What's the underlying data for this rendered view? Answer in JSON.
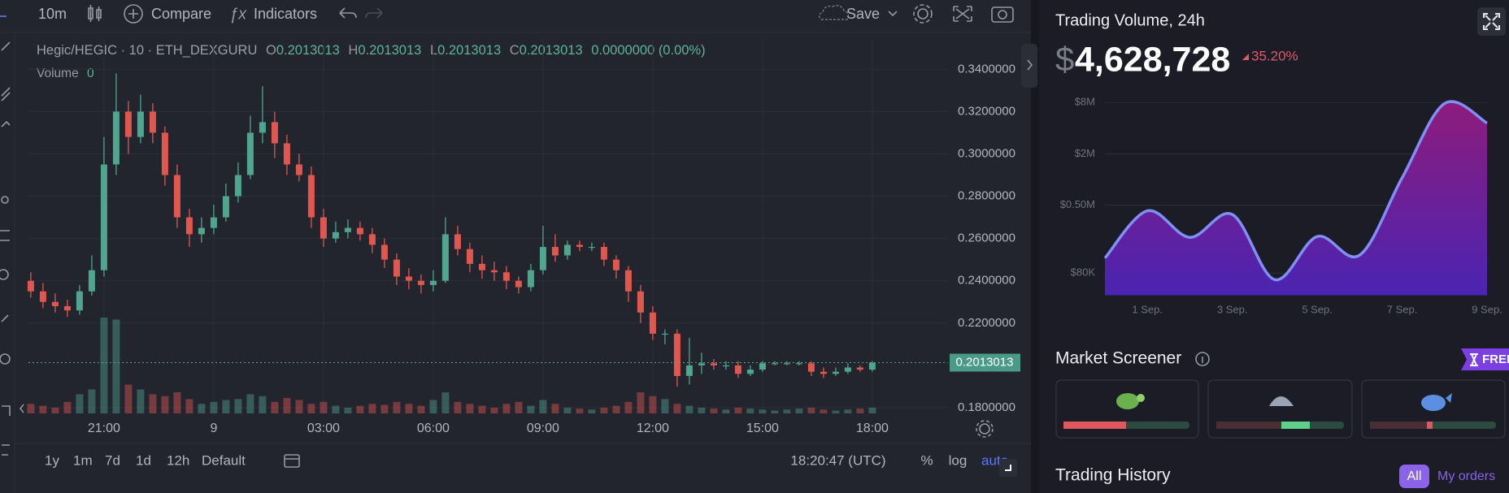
{
  "toolbar": {
    "interval": "10m",
    "compare": "Compare",
    "indicators": "Indicators",
    "save": "Save"
  },
  "chart_data": [
    {
      "type": "candlestick",
      "legend": {
        "symbol": "Hegic/HEGIC · 10 · ETH_DEXGURU",
        "o_label": "O",
        "o": "0.2013013",
        "h_label": "H",
        "h": "0.2013013",
        "l_label": "L",
        "l": "0.2013013",
        "c_label": "C",
        "c": "0.2013013",
        "change": "0.0000000 (0.00%)"
      },
      "volume_label": "Volume",
      "volume_value": "0",
      "ohlc": [
        [
          0.24,
          0.244,
          0.232,
          0.235
        ],
        [
          0.235,
          0.239,
          0.227,
          0.23
        ],
        [
          0.23,
          0.234,
          0.225,
          0.228
        ],
        [
          0.228,
          0.231,
          0.223,
          0.226
        ],
        [
          0.226,
          0.238,
          0.224,
          0.235
        ],
        [
          0.235,
          0.252,
          0.233,
          0.245
        ],
        [
          0.245,
          0.308,
          0.242,
          0.295
        ],
        [
          0.295,
          0.338,
          0.29,
          0.32
        ],
        [
          0.32,
          0.325,
          0.3,
          0.308
        ],
        [
          0.308,
          0.328,
          0.305,
          0.32
        ],
        [
          0.32,
          0.324,
          0.305,
          0.31
        ],
        [
          0.31,
          0.313,
          0.285,
          0.29
        ],
        [
          0.29,
          0.295,
          0.265,
          0.27
        ],
        [
          0.27,
          0.274,
          0.256,
          0.262
        ],
        [
          0.262,
          0.27,
          0.258,
          0.265
        ],
        [
          0.265,
          0.276,
          0.262,
          0.27
        ],
        [
          0.27,
          0.286,
          0.268,
          0.28
        ],
        [
          0.28,
          0.296,
          0.277,
          0.29
        ],
        [
          0.29,
          0.318,
          0.288,
          0.31
        ],
        [
          0.31,
          0.332,
          0.305,
          0.315
        ],
        [
          0.315,
          0.32,
          0.298,
          0.305
        ],
        [
          0.305,
          0.309,
          0.29,
          0.295
        ],
        [
          0.295,
          0.3,
          0.287,
          0.29
        ],
        [
          0.29,
          0.294,
          0.265,
          0.27
        ],
        [
          0.27,
          0.274,
          0.256,
          0.26
        ],
        [
          0.26,
          0.268,
          0.258,
          0.263
        ],
        [
          0.263,
          0.269,
          0.26,
          0.265
        ],
        [
          0.265,
          0.268,
          0.259,
          0.262
        ],
        [
          0.262,
          0.265,
          0.253,
          0.257
        ],
        [
          0.257,
          0.26,
          0.246,
          0.25
        ],
        [
          0.25,
          0.253,
          0.238,
          0.242
        ],
        [
          0.242,
          0.246,
          0.236,
          0.24
        ],
        [
          0.24,
          0.243,
          0.234,
          0.238
        ],
        [
          0.238,
          0.245,
          0.235,
          0.24
        ],
        [
          0.24,
          0.27,
          0.239,
          0.262
        ],
        [
          0.262,
          0.266,
          0.252,
          0.255
        ],
        [
          0.255,
          0.258,
          0.244,
          0.248
        ],
        [
          0.248,
          0.252,
          0.241,
          0.245
        ],
        [
          0.245,
          0.249,
          0.24,
          0.244
        ],
        [
          0.244,
          0.247,
          0.236,
          0.24
        ],
        [
          0.24,
          0.242,
          0.234,
          0.237
        ],
        [
          0.237,
          0.248,
          0.235,
          0.245
        ],
        [
          0.245,
          0.266,
          0.243,
          0.256
        ],
        [
          0.256,
          0.262,
          0.249,
          0.252
        ],
        [
          0.252,
          0.259,
          0.25,
          0.257
        ],
        [
          0.257,
          0.259,
          0.254,
          0.256
        ],
        [
          0.256,
          0.258,
          0.254,
          0.256
        ],
        [
          0.256,
          0.258,
          0.247,
          0.25
        ],
        [
          0.25,
          0.252,
          0.241,
          0.245
        ],
        [
          0.245,
          0.247,
          0.23,
          0.235
        ],
        [
          0.235,
          0.238,
          0.22,
          0.225
        ],
        [
          0.225,
          0.228,
          0.212,
          0.215
        ],
        [
          0.215,
          0.217,
          0.21,
          0.215
        ],
        [
          0.215,
          0.217,
          0.19,
          0.195
        ],
        [
          0.195,
          0.213,
          0.191,
          0.2
        ],
        [
          0.2,
          0.206,
          0.196,
          0.201
        ],
        [
          0.201,
          0.203,
          0.198,
          0.2
        ],
        [
          0.2,
          0.202,
          0.198,
          0.2
        ],
        [
          0.2,
          0.202,
          0.194,
          0.196
        ],
        [
          0.196,
          0.2,
          0.195,
          0.198
        ],
        [
          0.198,
          0.202,
          0.197,
          0.201
        ],
        [
          0.201,
          0.202,
          0.2,
          0.201
        ],
        [
          0.201,
          0.202,
          0.2,
          0.201
        ],
        [
          0.201,
          0.202,
          0.2,
          0.201
        ],
        [
          0.201,
          0.202,
          0.195,
          0.197
        ],
        [
          0.197,
          0.199,
          0.194,
          0.196
        ],
        [
          0.196,
          0.199,
          0.195,
          0.197
        ],
        [
          0.197,
          0.201,
          0.196,
          0.199
        ],
        [
          0.199,
          0.2,
          0.197,
          0.198
        ],
        [
          0.198,
          0.202,
          0.197,
          0.2013
        ]
      ],
      "volume": [
        10,
        8,
        6,
        12,
        20,
        25,
        100,
        98,
        30,
        25,
        20,
        18,
        22,
        15,
        10,
        12,
        14,
        15,
        20,
        18,
        12,
        16,
        14,
        10,
        12,
        8,
        6,
        8,
        10,
        9,
        12,
        10,
        8,
        14,
        22,
        12,
        10,
        8,
        6,
        10,
        12,
        8,
        14,
        10,
        6,
        5,
        4,
        6,
        8,
        12,
        22,
        18,
        15,
        10,
        8,
        6,
        5,
        4,
        6,
        5,
        4,
        3,
        4,
        5,
        6,
        4,
        3,
        4,
        5,
        6
      ],
      "volume_ylim": [
        0,
        100
      ],
      "ylim": [
        0.1773,
        0.3547
      ],
      "yticks": [
        {
          "value": 0.18,
          "label": "0.1800000"
        },
        {
          "value": 0.22,
          "label": "0.2200000"
        },
        {
          "value": 0.24,
          "label": "0.2400000"
        },
        {
          "value": 0.26,
          "label": "0.2600000"
        },
        {
          "value": 0.28,
          "label": "0.2800000"
        },
        {
          "value": 0.3,
          "label": "0.3000000"
        },
        {
          "value": 0.32,
          "label": "0.3200000"
        },
        {
          "value": 0.34,
          "label": "0.3400000"
        }
      ],
      "xticks": [
        {
          "value": 6,
          "label": "21:00"
        },
        {
          "value": 15,
          "label": "9"
        },
        {
          "value": 24,
          "label": "03:00"
        },
        {
          "value": 33,
          "label": "06:00"
        },
        {
          "value": 42,
          "label": "09:00"
        },
        {
          "value": 51,
          "label": "12:00"
        },
        {
          "value": 60,
          "label": "15:00"
        },
        {
          "value": 69,
          "label": "18:00"
        }
      ],
      "last_price": 0.2013013,
      "up_color": "#4fa58d",
      "down_color": "#e0574f",
      "grid": true
    },
    {
      "type": "area",
      "title": "Trading Volume, 24h",
      "categories": [
        null,
        "1 Sep.",
        null,
        "3 Sep.",
        null,
        "5 Sep.",
        null,
        "7 Sep.",
        null,
        "9 Sep."
      ],
      "values": [
        120000,
        430000,
        210000,
        390000,
        67000,
        215000,
        130000,
        1050000,
        7800000,
        4600000
      ],
      "log_scale": true,
      "ylim": [
        44000,
        9600000
      ],
      "yticks": [
        {
          "value": 80000,
          "label": "$80K"
        },
        {
          "value": 500000,
          "label": "$0.50M"
        },
        {
          "value": 2000000,
          "label": "$2M"
        },
        {
          "value": 8000000,
          "label": "$8M"
        }
      ],
      "line_color": "#7f8ff5",
      "fill_colors": [
        "#8e1c7c",
        "#4a24b2"
      ],
      "grid": true
    }
  ],
  "bottom_bar": {
    "ranges": [
      "1y",
      "1m",
      "7d",
      "1d",
      "12h"
    ],
    "default": "Default",
    "time": "18:20:47 (UTC)",
    "percent": "%",
    "log": "log",
    "auto": "auto"
  },
  "side_panel": {
    "currency": "$",
    "volume_total": "4,628,728",
    "change": "35.20%",
    "screener_title": "Market Screener",
    "badge": "FREE",
    "history_title": "Trading History",
    "tabs": [
      "All",
      "My orders"
    ]
  }
}
